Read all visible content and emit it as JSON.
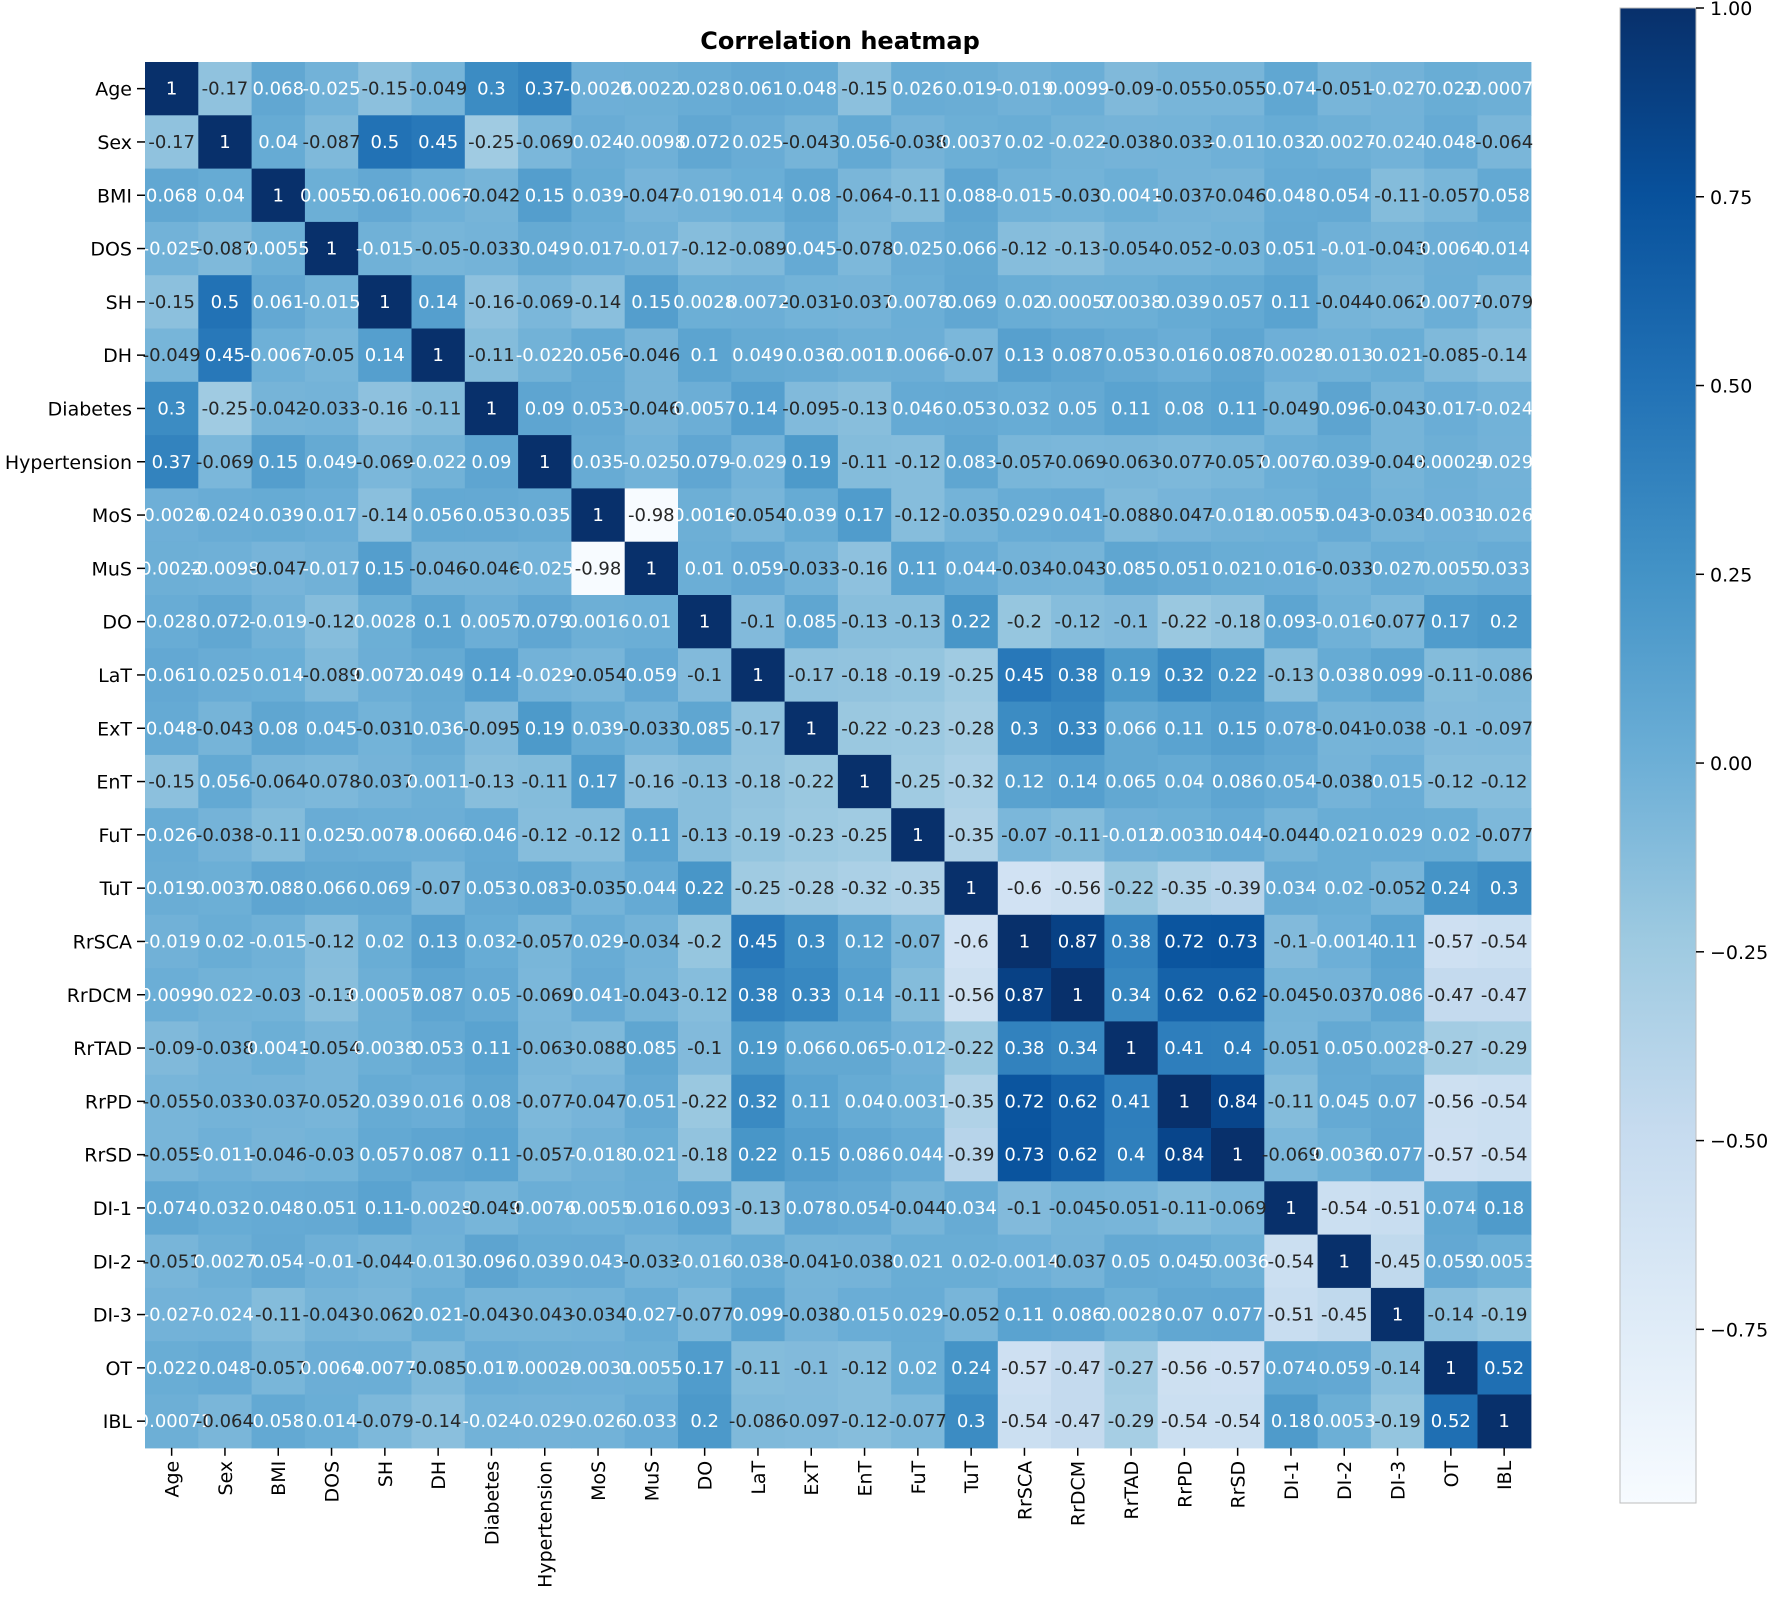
{
  "chart_data": {
    "type": "heatmap",
    "title": "Correlation heatmap",
    "xlabel": "",
    "ylabel": "",
    "labels": [
      "Age",
      "Sex",
      "BMI",
      "DOS",
      "SH",
      "DH",
      "Diabetes",
      "Hypertension",
      "MoS",
      "MuS",
      "DO",
      "LaT",
      "ExT",
      "EnT",
      "FuT",
      "TuT",
      "RrSCA",
      "RrDCM",
      "RrTAD",
      "RrPD",
      "RrSD",
      "DI-1",
      "DI-2",
      "DI-3",
      "OT",
      "IBL"
    ],
    "values": [
      [
        1,
        -0.17,
        0.068,
        -0.025,
        -0.15,
        -0.049,
        0.3,
        0.37,
        -0.0026,
        0.0022,
        0.028,
        0.061,
        0.048,
        -0.15,
        0.026,
        0.019,
        -0.019,
        0.0099,
        -0.09,
        -0.055,
        -0.055,
        0.074,
        -0.051,
        -0.027,
        0.022,
        -0.00071
      ],
      [
        -0.17,
        1,
        0.04,
        -0.087,
        0.5,
        0.45,
        -0.25,
        -0.069,
        0.024,
        -0.0098,
        0.072,
        0.025,
        -0.043,
        0.056,
        -0.038,
        0.0037,
        0.02,
        -0.022,
        -0.038,
        -0.033,
        -0.011,
        0.032,
        0.0027,
        -0.024,
        0.048,
        -0.064
      ],
      [
        0.068,
        0.04,
        1,
        0.0055,
        0.061,
        -0.0067,
        -0.042,
        0.15,
        0.039,
        -0.047,
        -0.019,
        0.014,
        0.08,
        -0.064,
        -0.11,
        0.088,
        -0.015,
        -0.03,
        0.0041,
        -0.037,
        -0.046,
        0.048,
        0.054,
        -0.11,
        -0.057,
        0.058
      ],
      [
        -0.025,
        -0.087,
        0.0055,
        1,
        -0.015,
        -0.05,
        -0.033,
        0.049,
        0.017,
        -0.017,
        -0.12,
        -0.089,
        0.045,
        -0.078,
        0.025,
        0.066,
        -0.12,
        -0.13,
        -0.054,
        -0.052,
        -0.03,
        0.051,
        -0.01,
        -0.043,
        0.0064,
        0.014
      ],
      [
        -0.15,
        0.5,
        0.061,
        -0.015,
        1,
        0.14,
        -0.16,
        -0.069,
        -0.14,
        0.15,
        0.0028,
        0.0072,
        -0.031,
        -0.037,
        0.0078,
        0.069,
        0.02,
        0.00057,
        0.0038,
        0.039,
        0.057,
        0.11,
        -0.044,
        -0.062,
        0.0077,
        -0.079
      ],
      [
        -0.049,
        0.45,
        -0.0067,
        -0.05,
        0.14,
        1,
        -0.11,
        -0.022,
        0.056,
        -0.046,
        0.1,
        0.049,
        0.036,
        0.0011,
        0.0066,
        -0.07,
        0.13,
        0.087,
        0.053,
        0.016,
        0.087,
        -0.0028,
        -0.013,
        0.021,
        -0.085,
        -0.14
      ],
      [
        0.3,
        -0.25,
        -0.042,
        -0.033,
        -0.16,
        -0.11,
        1,
        0.09,
        0.053,
        -0.046,
        0.0057,
        0.14,
        -0.095,
        -0.13,
        0.046,
        0.053,
        0.032,
        0.05,
        0.11,
        0.08,
        0.11,
        -0.049,
        0.096,
        -0.043,
        0.017,
        -0.024
      ],
      [
        0.37,
        -0.069,
        0.15,
        0.049,
        -0.069,
        -0.022,
        0.09,
        1,
        0.035,
        -0.025,
        0.079,
        -0.029,
        0.19,
        -0.11,
        -0.12,
        0.083,
        -0.057,
        -0.069,
        -0.063,
        -0.077,
        -0.057,
        0.0076,
        0.039,
        -0.043,
        0.00029,
        -0.029
      ],
      [
        -0.0026,
        0.024,
        0.039,
        0.017,
        -0.14,
        0.056,
        0.053,
        0.035,
        1,
        -0.98,
        0.0016,
        -0.054,
        0.039,
        0.17,
        -0.12,
        -0.035,
        0.029,
        0.041,
        -0.088,
        -0.047,
        -0.018,
        -0.0055,
        0.043,
        -0.034,
        -0.0031,
        -0.026
      ],
      [
        0.0022,
        -0.0098,
        -0.047,
        -0.017,
        0.15,
        -0.046,
        -0.046,
        -0.025,
        -0.98,
        1,
        0.01,
        0.059,
        -0.033,
        -0.16,
        0.11,
        0.044,
        -0.034,
        -0.043,
        0.085,
        0.051,
        0.021,
        0.016,
        -0.033,
        0.027,
        0.0055,
        0.033
      ],
      [
        0.028,
        0.072,
        -0.019,
        -0.12,
        0.0028,
        0.1,
        0.0057,
        0.079,
        0.0016,
        0.01,
        1,
        -0.1,
        0.085,
        -0.13,
        -0.13,
        0.22,
        -0.2,
        -0.12,
        -0.1,
        -0.22,
        -0.18,
        0.093,
        -0.016,
        -0.077,
        0.17,
        0.2
      ],
      [
        0.061,
        0.025,
        0.014,
        -0.089,
        0.0072,
        0.049,
        0.14,
        -0.029,
        -0.054,
        0.059,
        -0.1,
        1,
        -0.17,
        -0.18,
        -0.19,
        -0.25,
        0.45,
        0.38,
        0.19,
        0.32,
        0.22,
        -0.13,
        0.038,
        0.099,
        -0.11,
        -0.086
      ],
      [
        0.048,
        -0.043,
        0.08,
        0.045,
        -0.031,
        0.036,
        -0.095,
        0.19,
        0.039,
        -0.033,
        0.085,
        -0.17,
        1,
        -0.22,
        -0.23,
        -0.28,
        0.3,
        0.33,
        0.066,
        0.11,
        0.15,
        0.078,
        -0.041,
        -0.038,
        -0.1,
        -0.097
      ],
      [
        -0.15,
        0.056,
        -0.064,
        -0.078,
        -0.037,
        0.0011,
        -0.13,
        -0.11,
        0.17,
        -0.16,
        -0.13,
        -0.18,
        -0.22,
        1,
        -0.25,
        -0.32,
        0.12,
        0.14,
        0.065,
        0.04,
        0.086,
        0.054,
        -0.038,
        0.015,
        -0.12,
        -0.12
      ],
      [
        0.026,
        -0.038,
        -0.11,
        0.025,
        0.0078,
        0.0066,
        0.046,
        -0.12,
        -0.12,
        0.11,
        -0.13,
        -0.19,
        -0.23,
        -0.25,
        1,
        -0.35,
        -0.07,
        -0.11,
        -0.012,
        0.0031,
        0.044,
        -0.044,
        0.021,
        0.029,
        0.02,
        -0.077
      ],
      [
        0.019,
        0.0037,
        0.088,
        0.066,
        0.069,
        -0.07,
        0.053,
        0.083,
        -0.035,
        0.044,
        0.22,
        -0.25,
        -0.28,
        -0.32,
        -0.35,
        1,
        -0.6,
        -0.56,
        -0.22,
        -0.35,
        -0.39,
        0.034,
        0.02,
        -0.052,
        0.24,
        0.3
      ],
      [
        -0.019,
        0.02,
        -0.015,
        -0.12,
        0.02,
        0.13,
        0.032,
        -0.057,
        0.029,
        -0.034,
        -0.2,
        0.45,
        0.3,
        0.12,
        -0.07,
        -0.6,
        1,
        0.87,
        0.38,
        0.72,
        0.73,
        -0.1,
        -0.0014,
        0.11,
        -0.57,
        -0.54
      ],
      [
        0.0099,
        -0.022,
        -0.03,
        -0.13,
        0.00057,
        0.087,
        0.05,
        -0.069,
        0.041,
        -0.043,
        -0.12,
        0.38,
        0.33,
        0.14,
        -0.11,
        -0.56,
        0.87,
        1,
        0.34,
        0.62,
        0.62,
        -0.045,
        -0.037,
        0.086,
        -0.47,
        -0.47
      ],
      [
        -0.09,
        -0.038,
        0.0041,
        -0.054,
        0.0038,
        0.053,
        0.11,
        -0.063,
        -0.088,
        0.085,
        -0.1,
        0.19,
        0.066,
        0.065,
        -0.012,
        -0.22,
        0.38,
        0.34,
        1,
        0.41,
        0.4,
        -0.051,
        0.05,
        0.0028,
        -0.27,
        -0.29
      ],
      [
        -0.055,
        -0.033,
        -0.037,
        -0.052,
        0.039,
        0.016,
        0.08,
        -0.077,
        -0.047,
        0.051,
        -0.22,
        0.32,
        0.11,
        0.04,
        0.0031,
        -0.35,
        0.72,
        0.62,
        0.41,
        1,
        0.84,
        -0.11,
        0.045,
        0.07,
        -0.56,
        -0.54
      ],
      [
        -0.055,
        -0.011,
        -0.046,
        -0.03,
        0.057,
        0.087,
        0.11,
        -0.057,
        -0.018,
        0.021,
        -0.18,
        0.22,
        0.15,
        0.086,
        0.044,
        -0.39,
        0.73,
        0.62,
        0.4,
        0.84,
        1,
        -0.069,
        0.0036,
        0.077,
        -0.57,
        -0.54
      ],
      [
        0.074,
        0.032,
        0.048,
        0.051,
        0.11,
        -0.0028,
        -0.049,
        0.0076,
        -0.0055,
        0.016,
        0.093,
        -0.13,
        0.078,
        0.054,
        -0.044,
        0.034,
        -0.1,
        -0.045,
        -0.051,
        -0.11,
        -0.069,
        1,
        -0.54,
        -0.51,
        0.074,
        0.18
      ],
      [
        -0.051,
        0.0027,
        0.054,
        -0.01,
        -0.044,
        -0.013,
        0.096,
        0.039,
        0.043,
        -0.033,
        -0.016,
        0.038,
        -0.041,
        -0.038,
        0.021,
        0.02,
        -0.0014,
        -0.037,
        0.05,
        0.045,
        0.0036,
        -0.54,
        1,
        -0.45,
        0.059,
        0.0053
      ],
      [
        -0.027,
        -0.024,
        -0.11,
        -0.043,
        -0.062,
        0.021,
        -0.043,
        -0.043,
        -0.034,
        0.027,
        -0.077,
        0.099,
        -0.038,
        0.015,
        0.029,
        -0.052,
        0.11,
        0.086,
        0.0028,
        0.07,
        0.077,
        -0.51,
        -0.45,
        1,
        -0.14,
        -0.19
      ],
      [
        0.022,
        0.048,
        -0.057,
        0.0064,
        0.0077,
        -0.085,
        0.017,
        0.00029,
        -0.0031,
        0.0055,
        0.17,
        -0.11,
        -0.1,
        -0.12,
        0.02,
        0.24,
        -0.57,
        -0.47,
        -0.27,
        -0.56,
        -0.57,
        0.074,
        0.059,
        -0.14,
        1,
        0.52
      ],
      [
        -0.00071,
        -0.064,
        0.058,
        0.014,
        -0.079,
        -0.14,
        -0.024,
        -0.029,
        -0.026,
        0.033,
        0.2,
        -0.086,
        -0.097,
        -0.12,
        -0.077,
        0.3,
        -0.54,
        -0.47,
        -0.29,
        -0.54,
        -0.54,
        0.18,
        0.0053,
        -0.19,
        0.52,
        1
      ]
    ],
    "colorbar": {
      "min": -0.98,
      "max": 1.0,
      "ticks": [
        1.0,
        0.75,
        0.5,
        0.25,
        0.0,
        -0.25,
        -0.5,
        -0.75
      ],
      "tick_labels": [
        "1.00",
        "0.75",
        "0.50",
        "0.25",
        "0.00",
        "−0.25",
        "−0.50",
        "−0.75"
      ],
      "colormap": "Blues",
      "low_color": "#f7fbff",
      "high_color": "#08306b"
    },
    "grid": false,
    "legend": "colorbar-right"
  }
}
